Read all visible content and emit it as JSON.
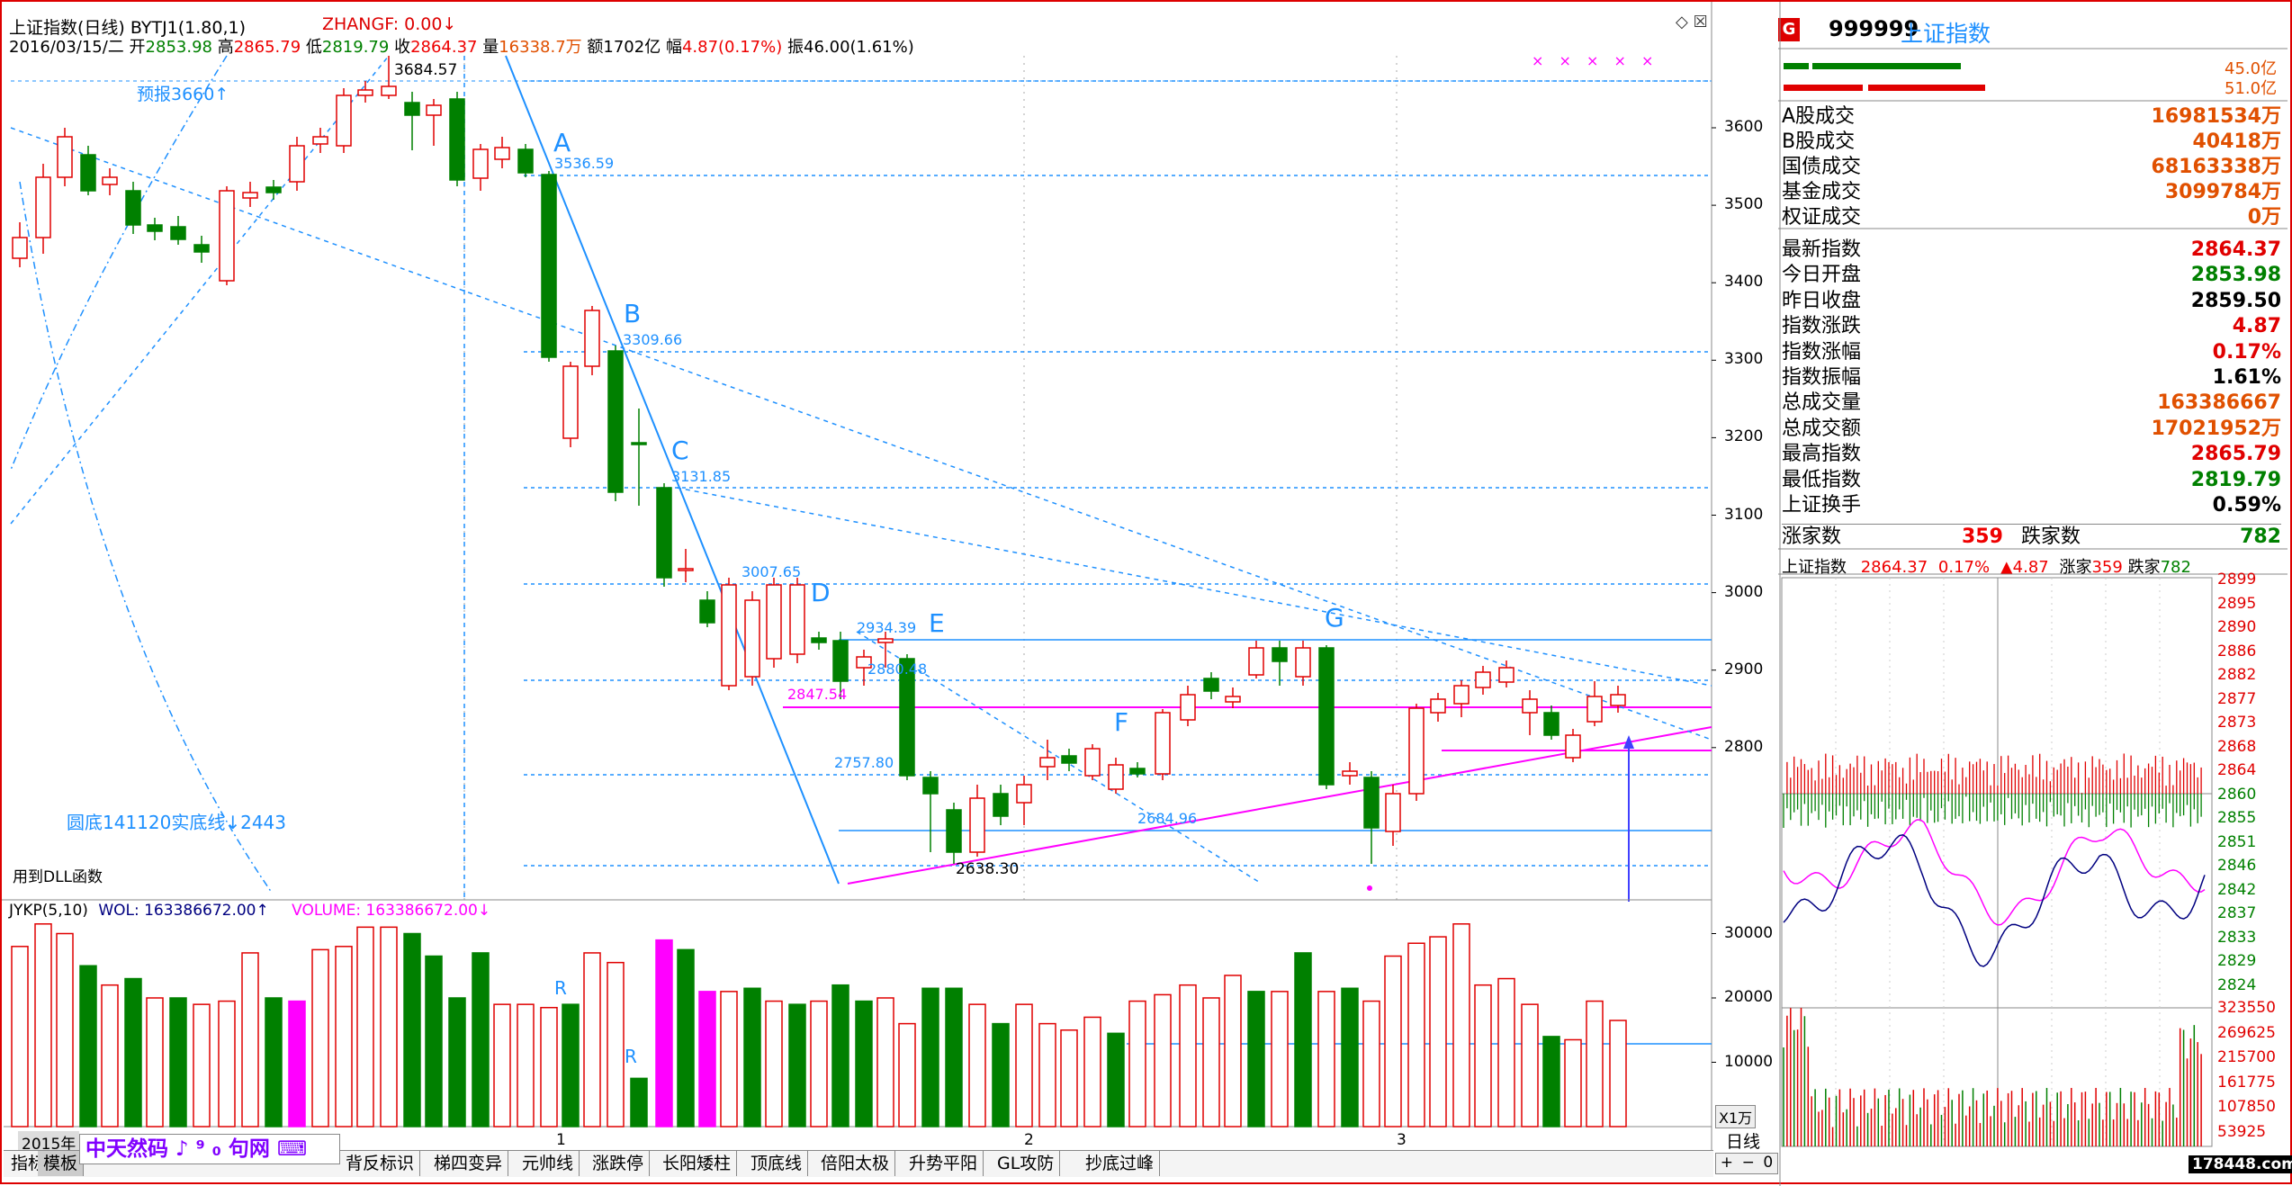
{
  "header": {
    "title": "上证指数(日线) BYTJ1(1.80,1)",
    "zhangf": "ZHANGF: 0.00↓",
    "date": "2016/03/15/二",
    "open_label": "开",
    "open": "2853.98",
    "high_label": "高",
    "high": "2865.79",
    "low_label": "低",
    "low": "2819.79",
    "close_label": "收",
    "close": "2864.37",
    "vol_label": "量",
    "vol": "16338.7万",
    "amount_label": "额",
    "amount": "1702亿",
    "range_label": "幅",
    "range": "4.87(0.17%)",
    "swing_label": "振",
    "swing": "46.00(1.61%)",
    "icons": "◇ ☒"
  },
  "annotations": {
    "A": "A",
    "B": "B",
    "C": "C",
    "D": "D",
    "E": "E",
    "F": "F",
    "G": "G",
    "v3684": "3684.57",
    "v3536": "3536.59",
    "v3309": "3309.66",
    "v3131": "3131.85",
    "v3007": "3007.65",
    "v2934": "2934.39",
    "v2880": "2880.48",
    "v2847": "2847.54",
    "v2757": "2757.80",
    "v2684": "2684.96",
    "v2638": "2638.30",
    "forecast": "预报3660↑",
    "arc_bottom": "圆底141120实底线↓2443",
    "dll": "用到DLL函数",
    "stars": "× × × × ×"
  },
  "price_axis": [
    "3600",
    "3500",
    "3400",
    "3300",
    "3200",
    "3100",
    "3000",
    "2900",
    "2800"
  ],
  "volume_header": {
    "name": "JYKP(5,10)",
    "wol": "WOL: 163386672.00↑",
    "volume": "VOLUME: 163386672.00↓"
  },
  "volume_axis": [
    "30000",
    "20000",
    "10000"
  ],
  "volume_unit": "X1万",
  "volume_markers": [
    "R",
    "R"
  ],
  "date_axis": {
    "year": "2015年",
    "m1": "1",
    "m2": "2",
    "m3": "3"
  },
  "tabs": [
    "指标",
    "模板",
    "背反标识",
    "梯四变异",
    "元帅线",
    "涨跌停",
    "长阳矮柱",
    "顶底线",
    "倍阳太极",
    "升势平阳",
    "GL攻防",
    "抄底过峰"
  ],
  "watermark": "中天然码 ♪ ⁹ ₀ 句网 ⌨",
  "period": "日线",
  "period_controls": [
    "+",
    "−",
    "0"
  ],
  "right_panel": {
    "code_badge": "G",
    "code": "999999",
    "name": "上证指数",
    "bar_vals": [
      "45.0亿",
      "51.0亿"
    ],
    "trades": [
      {
        "label": "A股成交",
        "value": "16981534万"
      },
      {
        "label": "B股成交",
        "value": "40418万"
      },
      {
        "label": "国债成交",
        "value": "68163338万"
      },
      {
        "label": "基金成交",
        "value": "3099784万"
      },
      {
        "label": "权证成交",
        "value": "0万"
      }
    ],
    "stats": [
      {
        "label": "最新指数",
        "value": "2864.37",
        "color": "#e00000"
      },
      {
        "label": "今日开盘",
        "value": "2853.98",
        "color": "#008000"
      },
      {
        "label": "昨日收盘",
        "value": "2859.50",
        "color": "#000000"
      },
      {
        "label": "指数涨跌",
        "value": "4.87",
        "color": "#e00000"
      },
      {
        "label": "指数涨幅",
        "value": "0.17%",
        "color": "#e00000"
      },
      {
        "label": "指数振幅",
        "value": "1.61%",
        "color": "#000000"
      },
      {
        "label": "总成交量",
        "value": "163386667",
        "color": "#e05000"
      },
      {
        "label": "总成交额",
        "value": "17021952万",
        "color": "#e05000"
      },
      {
        "label": "最高指数",
        "value": "2865.79",
        "color": "#e00000"
      },
      {
        "label": "最低指数",
        "value": "2819.79",
        "color": "#008000"
      },
      {
        "label": "上证换手",
        "value": "0.59%",
        "color": "#000000"
      }
    ],
    "up_label": "涨家数",
    "up": "359",
    "down_label": "跌家数",
    "down": "782",
    "mini_header": {
      "name": "上证指数",
      "price": "2864.37",
      "pct": "0.17%",
      "chg": "▲4.87",
      "up_label": "涨家",
      "up": "359",
      "down_label": "跌家",
      "down": "782"
    },
    "mini_axis": [
      "2899",
      "2895",
      "2890",
      "2886",
      "2882",
      "2877",
      "2873",
      "2868",
      "2864",
      "2860",
      "2855",
      "2851",
      "2846",
      "2842",
      "2837",
      "2833",
      "2829",
      "2824"
    ],
    "mini_vol_axis": [
      "323550",
      "269625",
      "215700",
      "161775",
      "107850",
      "53925"
    ],
    "watermark": "178448.com"
  },
  "colors": {
    "up": "#e00000",
    "down": "#008000",
    "accent": "#1e90ff",
    "magenta": "#ff00ff",
    "frame": "#d00000"
  }
}
